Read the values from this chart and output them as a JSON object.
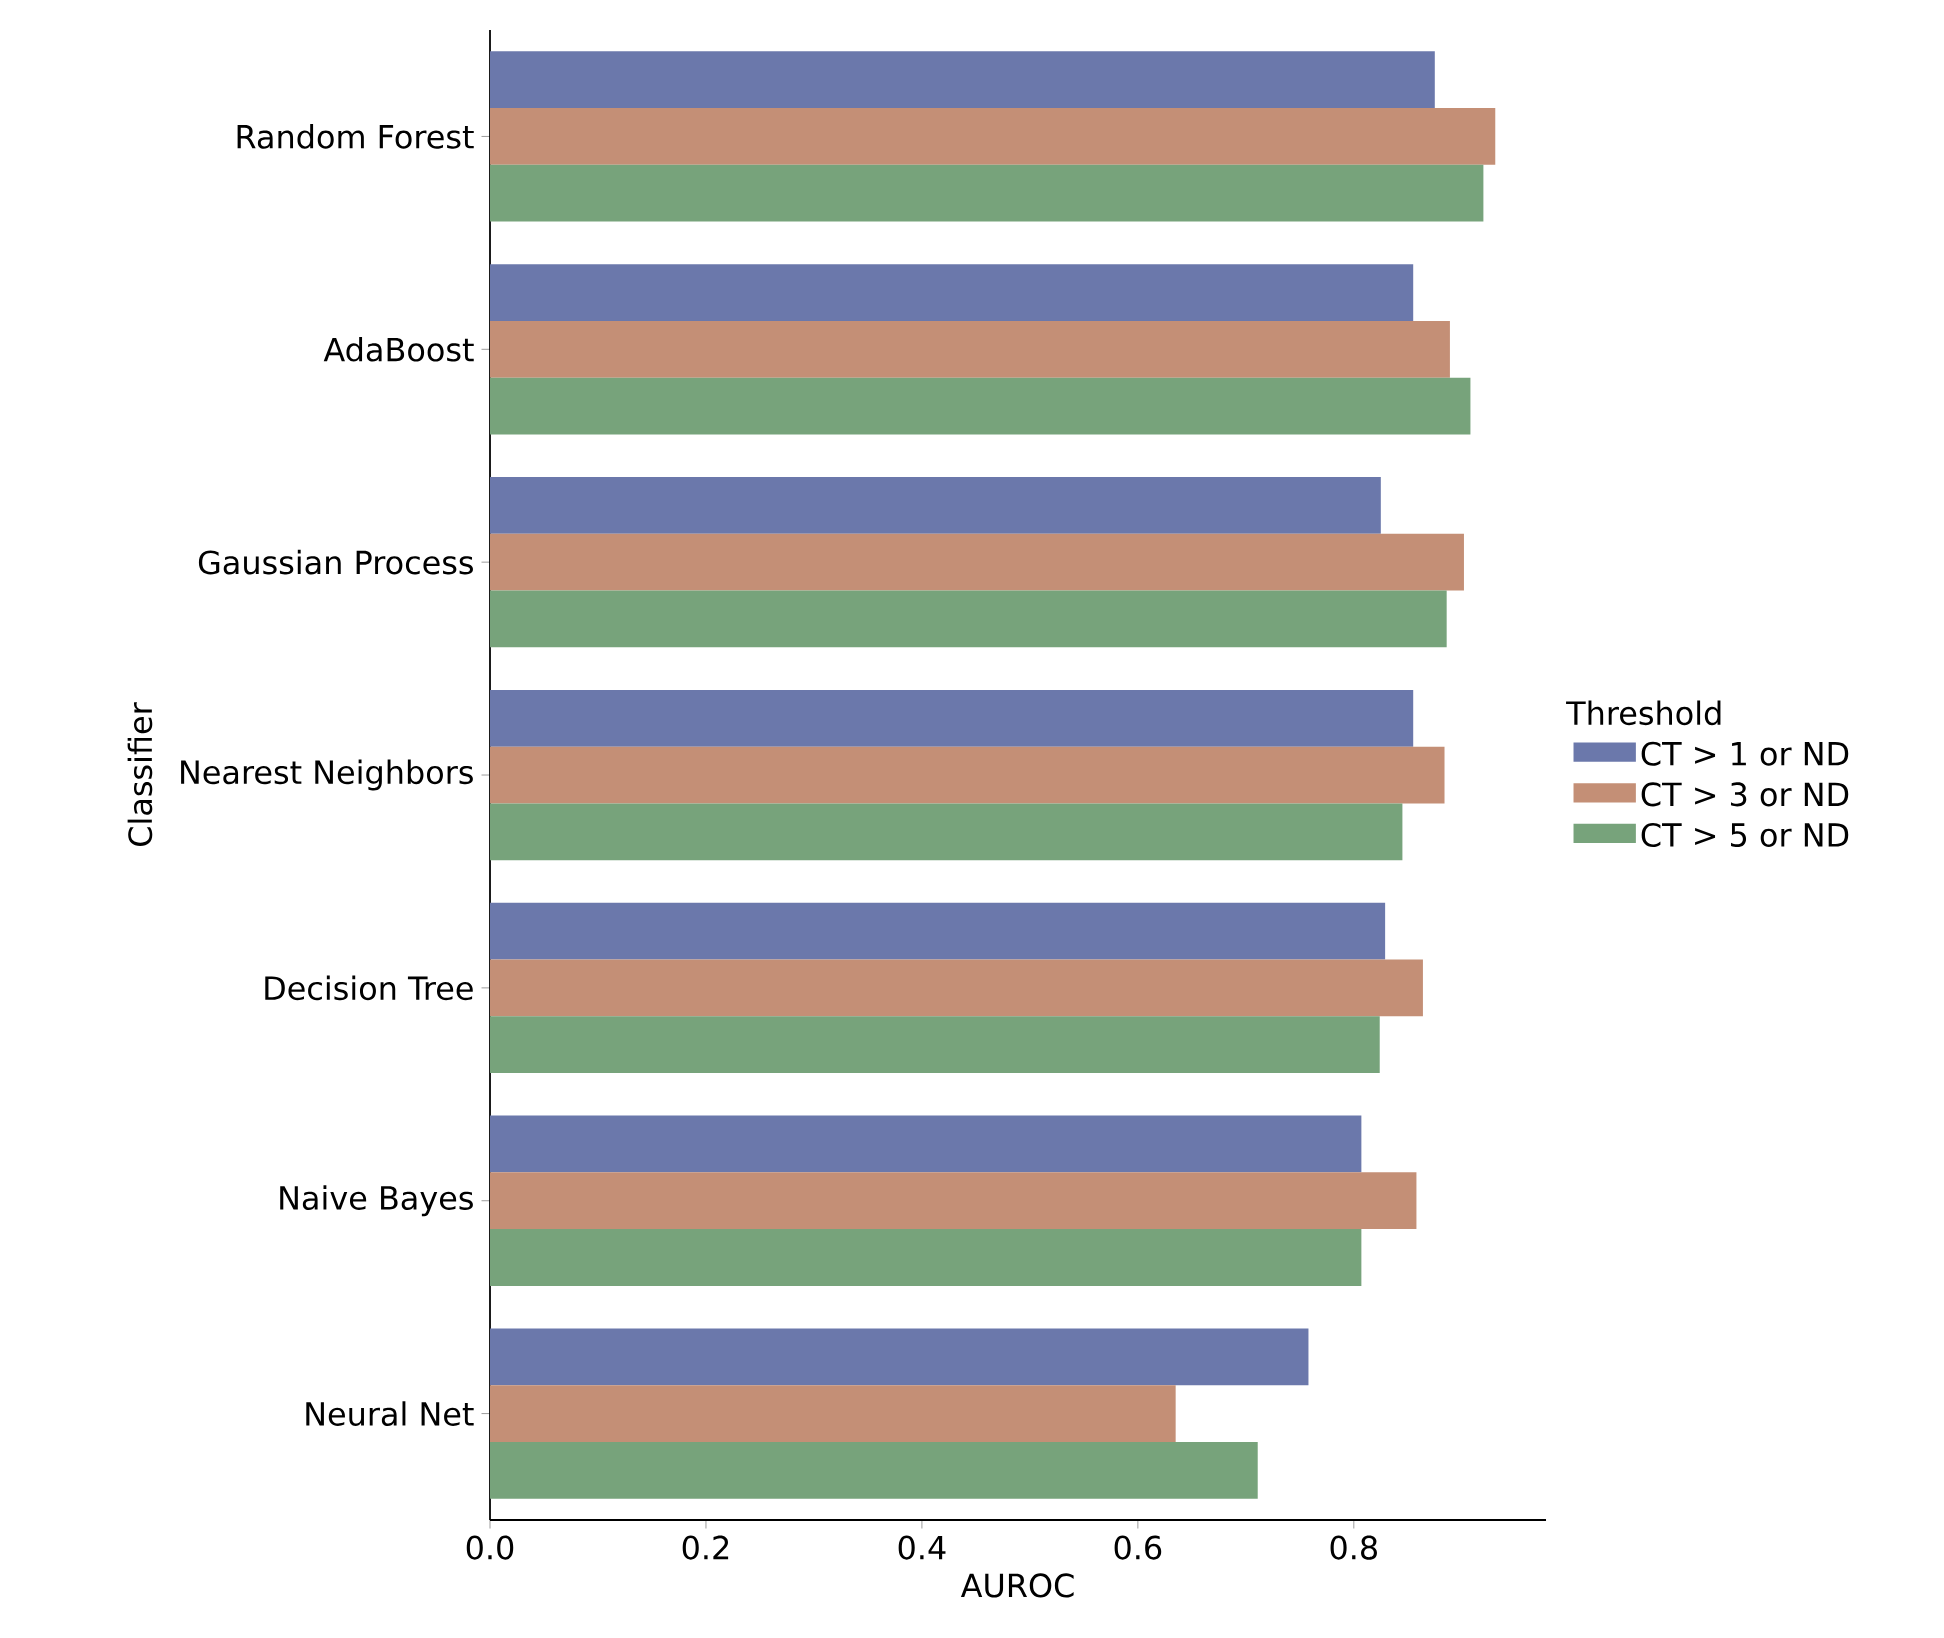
{
  "chart_data": {
    "type": "bar",
    "orientation": "horizontal",
    "xlabel": "AUROC",
    "ylabel": "Classifier",
    "legend_title": "Threshold",
    "legend": "right",
    "categories": [
      "Random Forest",
      "AdaBoost",
      "Gaussian Process",
      "Nearest Neighbors",
      "Decision Tree",
      "Naive Bayes",
      "Neural Net"
    ],
    "series": [
      {
        "name": "CT > 1 or ND",
        "color": "#6b78ab",
        "values": [
          0.875,
          0.855,
          0.825,
          0.855,
          0.829,
          0.807,
          0.758
        ]
      },
      {
        "name": "CT > 3 or ND",
        "color": "#c48f76",
        "values": [
          0.931,
          0.889,
          0.902,
          0.884,
          0.864,
          0.858,
          0.635
        ]
      },
      {
        "name": "CT > 5 or ND",
        "color": "#77a37b",
        "values": [
          0.92,
          0.908,
          0.886,
          0.845,
          0.824,
          0.807,
          0.711
        ]
      }
    ],
    "xlim": [
      0,
      0.978
    ],
    "xticks": [
      {
        "value": 0,
        "label": "0.0"
      },
      {
        "value": 0.2,
        "label": "0.2"
      },
      {
        "value": 0.4,
        "label": "0.4"
      },
      {
        "value": 0.6,
        "label": "0.6"
      },
      {
        "value": 0.8,
        "label": "0.8"
      }
    ]
  }
}
